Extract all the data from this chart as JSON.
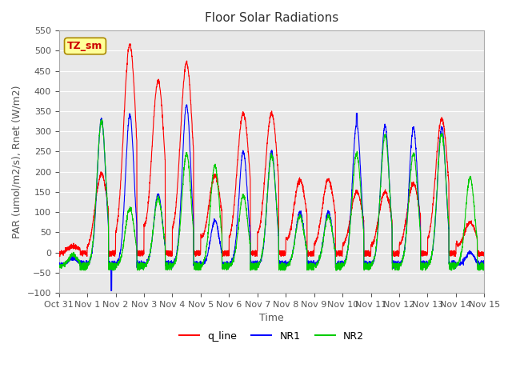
{
  "title": "Floor Solar Radiations",
  "xlabel": "Time",
  "ylabel": "PAR (umol/m2/s), Rnet (W/m2)",
  "ylim": [
    -100,
    550
  ],
  "yticks": [
    -100,
    -50,
    0,
    50,
    100,
    150,
    200,
    250,
    300,
    350,
    400,
    450,
    500,
    550
  ],
  "xlim_start": 0,
  "xlim_end": 15,
  "xtick_labels": [
    "Oct 31",
    "Nov 1",
    "Nov 2",
    "Nov 3",
    "Nov 4",
    "Nov 5",
    "Nov 6",
    "Nov 7",
    "Nov 8",
    "Nov 9",
    "Nov 10",
    "Nov 11",
    "Nov 12",
    "Nov 13",
    "Nov 14",
    "Nov 15"
  ],
  "legend_label": "TZ_sm",
  "line_colors": {
    "q_line": "#FF0000",
    "NR1": "#0000FF",
    "NR2": "#00CC00"
  },
  "bg_color": "#E8E8E8",
  "grid_color": "#FFFFFF",
  "annotation_box_color": "#FFFF99",
  "annotation_text_color": "#CC0000"
}
